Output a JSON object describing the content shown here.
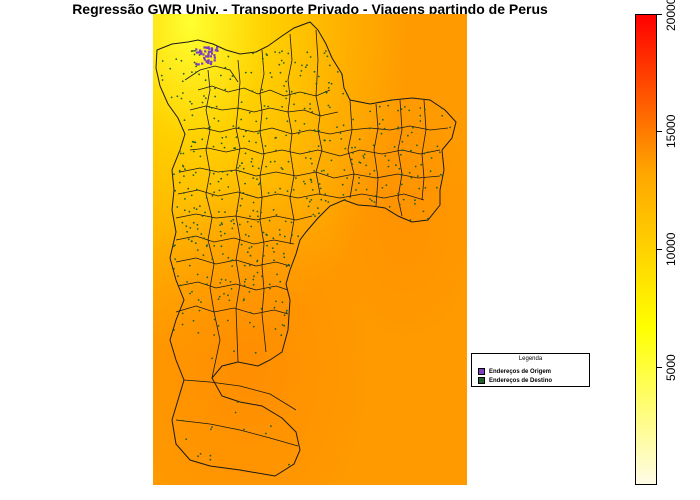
{
  "title": "Regressão GWR Univ. - Transporte Privado - Viagens partindo de Perus",
  "legend": {
    "title": "Legenda",
    "items": [
      {
        "label": "Endereços de Origem",
        "color": "#7b3fbf"
      },
      {
        "label": "Endereços de Destino",
        "color": "#1f5f2a"
      }
    ]
  },
  "colorbar": {
    "min": 0,
    "max": 20000,
    "ticks": [
      "5000",
      "10000",
      "15000",
      "20000"
    ],
    "tick_values": [
      5000,
      10000,
      15000,
      20000
    ],
    "colors": [
      "#fffbe6",
      "#ffff00",
      "#ffa500",
      "#ff0000"
    ]
  },
  "map_colors": {
    "low": "#ffff20",
    "mid": "#ffc000",
    "high": "#ff9a00",
    "boundary": "#1a1a1a"
  }
}
